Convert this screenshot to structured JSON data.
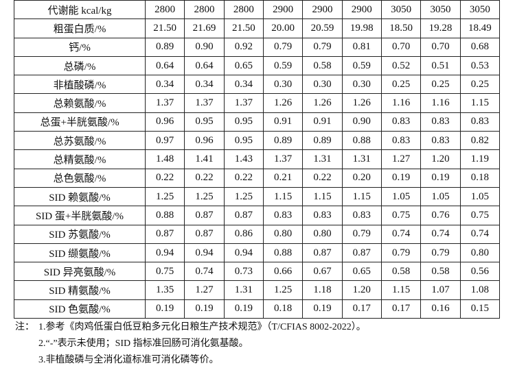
{
  "table": {
    "rows": [
      {
        "label": "代谢能 kcal/kg",
        "cells": [
          "2800",
          "2800",
          "2800",
          "2900",
          "2900",
          "2900",
          "3050",
          "3050",
          "3050"
        ]
      },
      {
        "label": "粗蛋白质/%",
        "cells": [
          "21.50",
          "21.69",
          "21.50",
          "20.00",
          "20.59",
          "19.98",
          "18.50",
          "19.28",
          "18.49"
        ]
      },
      {
        "label": "钙/%",
        "cells": [
          "0.89",
          "0.90",
          "0.92",
          "0.79",
          "0.79",
          "0.81",
          "0.70",
          "0.70",
          "0.68"
        ]
      },
      {
        "label": "总磷/%",
        "cells": [
          "0.64",
          "0.64",
          "0.65",
          "0.59",
          "0.58",
          "0.59",
          "0.52",
          "0.51",
          "0.53"
        ]
      },
      {
        "label": "非植酸磷/%",
        "cells": [
          "0.34",
          "0.34",
          "0.34",
          "0.30",
          "0.30",
          "0.30",
          "0.25",
          "0.25",
          "0.25"
        ]
      },
      {
        "label": "总赖氨酸/%",
        "cells": [
          "1.37",
          "1.37",
          "1.37",
          "1.26",
          "1.26",
          "1.26",
          "1.16",
          "1.16",
          "1.15"
        ]
      },
      {
        "label": "总蛋+半胱氨酸/%",
        "cells": [
          "0.96",
          "0.95",
          "0.95",
          "0.91",
          "0.91",
          "0.90",
          "0.83",
          "0.83",
          "0.83"
        ]
      },
      {
        "label": "总苏氨酸/%",
        "cells": [
          "0.97",
          "0.96",
          "0.95",
          "0.89",
          "0.89",
          "0.88",
          "0.83",
          "0.83",
          "0.82"
        ]
      },
      {
        "label": "总精氨酸/%",
        "cells": [
          "1.48",
          "1.41",
          "1.43",
          "1.37",
          "1.31",
          "1.31",
          "1.27",
          "1.20",
          "1.19"
        ]
      },
      {
        "label": "总色氨酸/%",
        "cells": [
          "0.22",
          "0.22",
          "0.22",
          "0.21",
          "0.22",
          "0.20",
          "0.19",
          "0.19",
          "0.18"
        ]
      },
      {
        "label": "SID 赖氨酸/%",
        "cells": [
          "1.25",
          "1.25",
          "1.25",
          "1.15",
          "1.15",
          "1.15",
          "1.05",
          "1.05",
          "1.05"
        ]
      },
      {
        "label": "SID 蛋+半胱氨酸/%",
        "cells": [
          "0.88",
          "0.87",
          "0.87",
          "0.83",
          "0.83",
          "0.83",
          "0.75",
          "0.76",
          "0.75"
        ]
      },
      {
        "label": "SID 苏氨酸/%",
        "cells": [
          "0.87",
          "0.87",
          "0.86",
          "0.80",
          "0.80",
          "0.79",
          "0.74",
          "0.74",
          "0.74"
        ]
      },
      {
        "label": "SID 缬氨酸/%",
        "cells": [
          "0.94",
          "0.94",
          "0.94",
          "0.88",
          "0.87",
          "0.87",
          "0.79",
          "0.79",
          "0.80"
        ]
      },
      {
        "label": "SID 异亮氨酸/%",
        "cells": [
          "0.75",
          "0.74",
          "0.73",
          "0.66",
          "0.67",
          "0.65",
          "0.58",
          "0.58",
          "0.56"
        ]
      },
      {
        "label": "SID 精氨酸/%",
        "cells": [
          "1.35",
          "1.27",
          "1.31",
          "1.25",
          "1.18",
          "1.20",
          "1.15",
          "1.07",
          "1.08"
        ]
      },
      {
        "label": "SID 色氨酸/%",
        "cells": [
          "0.19",
          "0.19",
          "0.19",
          "0.18",
          "0.19",
          "0.17",
          "0.17",
          "0.16",
          "0.15"
        ]
      }
    ]
  },
  "notes": {
    "label": "注：",
    "items": [
      "1.参考《肉鸡低蛋白低豆粕多元化日粮生产技术规范》（T/CFIAS 8002-2022）。",
      "2.“-”表示未使用；SID 指标准回肠可消化氨基酸。",
      "3.非植酸磷与全消化道标准可消化磷等价。"
    ]
  }
}
